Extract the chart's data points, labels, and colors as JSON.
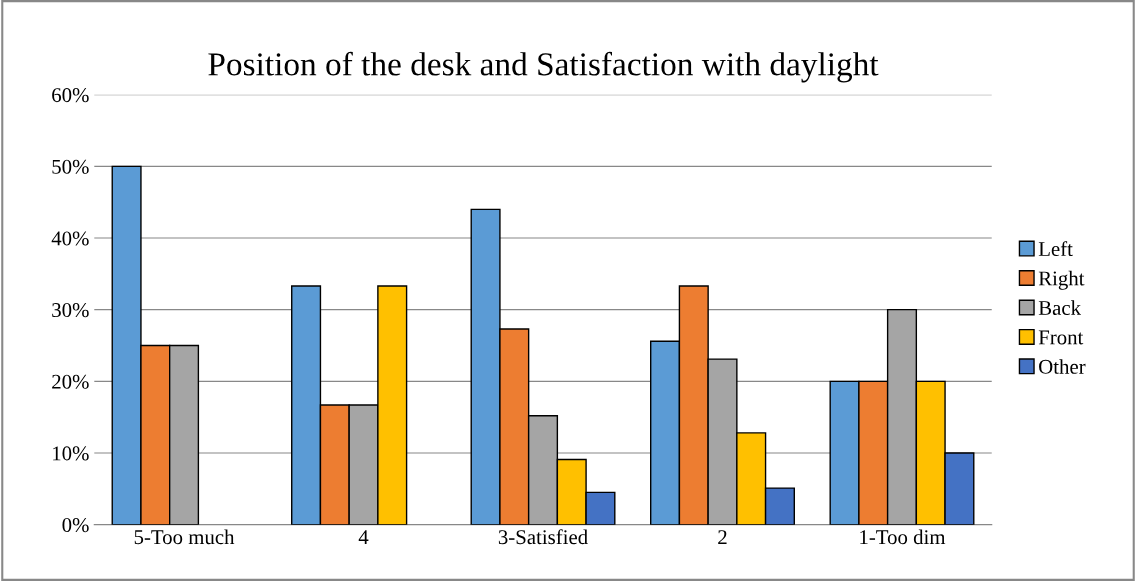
{
  "chart_data": {
    "type": "bar",
    "title": "Position of the desk and Satisfaction with daylight",
    "categories": [
      "5-Too much",
      "4",
      "3-Satisfied",
      "2",
      "1-Too dim"
    ],
    "series": [
      {
        "name": "Left",
        "color": "#5b9bd5",
        "values": [
          50,
          33.3,
          44,
          25.6,
          20
        ]
      },
      {
        "name": "Right",
        "color": "#ed7d31",
        "values": [
          25,
          16.7,
          27.3,
          33.3,
          20
        ]
      },
      {
        "name": "Back",
        "color": "#a5a5a5",
        "values": [
          25,
          16.7,
          15.2,
          23.1,
          30
        ]
      },
      {
        "name": "Front",
        "color": "#ffc000",
        "values": [
          null,
          33.3,
          9.1,
          12.8,
          20
        ]
      },
      {
        "name": "Other",
        "color": "#4472c4",
        "values": [
          null,
          null,
          4.5,
          5.1,
          10
        ]
      }
    ],
    "ylim": [
      0,
      60
    ],
    "yticks": [
      {
        "value": 0,
        "label": "0%"
      },
      {
        "value": 10,
        "label": "10%"
      },
      {
        "value": 20,
        "label": "20%"
      },
      {
        "value": 30,
        "label": "30%"
      },
      {
        "value": 40,
        "label": "40%"
      },
      {
        "value": 50,
        "label": "50%"
      },
      {
        "value": 60,
        "label": "60%"
      }
    ],
    "grid": "y",
    "legend": "right"
  }
}
